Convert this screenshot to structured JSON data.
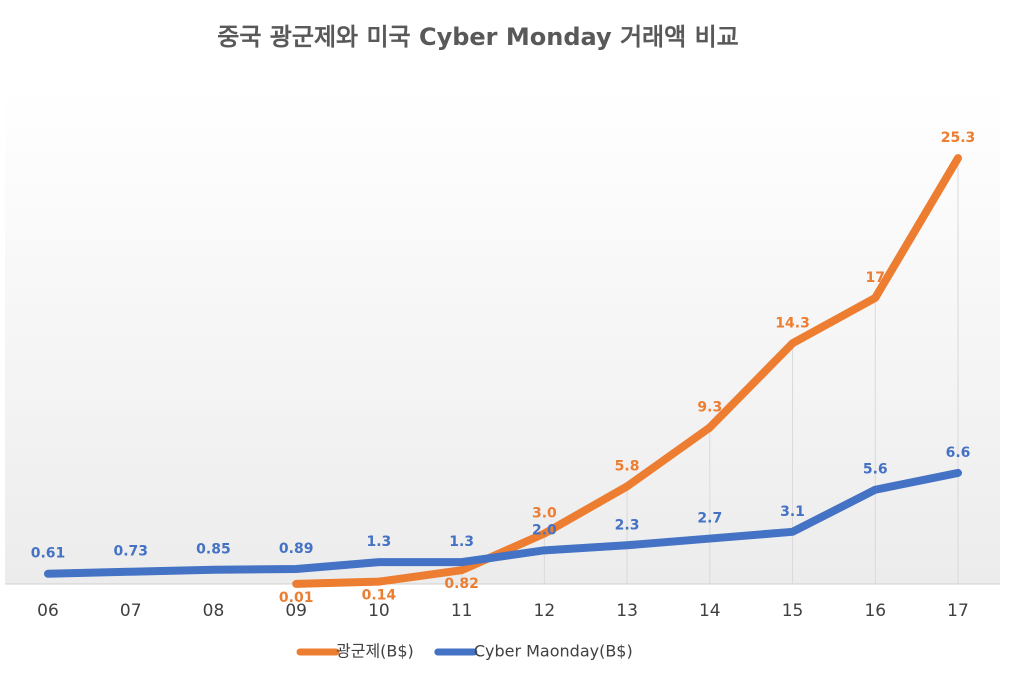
{
  "chart_data": {
    "type": "line",
    "title": "중국 광군제와 미국 Cyber Monday 거래액 비교",
    "categories": [
      "06",
      "07",
      "08",
      "09",
      "10",
      "11",
      "12",
      "13",
      "14",
      "15",
      "16",
      "17"
    ],
    "ylim": [
      0,
      30
    ],
    "series": [
      {
        "name": "광군제(B$)",
        "color": "#ed7d31",
        "values": [
          null,
          null,
          null,
          0.01,
          0.14,
          0.82,
          3.0,
          5.8,
          9.3,
          14.3,
          17,
          25.3
        ],
        "value_labels": [
          null,
          null,
          null,
          "0.01",
          "0.14",
          "0.82",
          "3.0",
          "5.8",
          "9.3",
          "14.3",
          "17",
          "25.3"
        ]
      },
      {
        "name": "Cyber Maonday(B$)",
        "color": "#4472c4",
        "values": [
          0.61,
          0.73,
          0.85,
          0.89,
          1.3,
          1.3,
          2.0,
          2.3,
          2.7,
          3.1,
          5.6,
          6.6
        ],
        "value_labels": [
          "0.61",
          "0.73",
          "0.85",
          "0.89",
          "1.3",
          "1.3",
          "2.0",
          "2.3",
          "2.7",
          "3.1",
          "5.6",
          "6.6"
        ]
      }
    ]
  }
}
